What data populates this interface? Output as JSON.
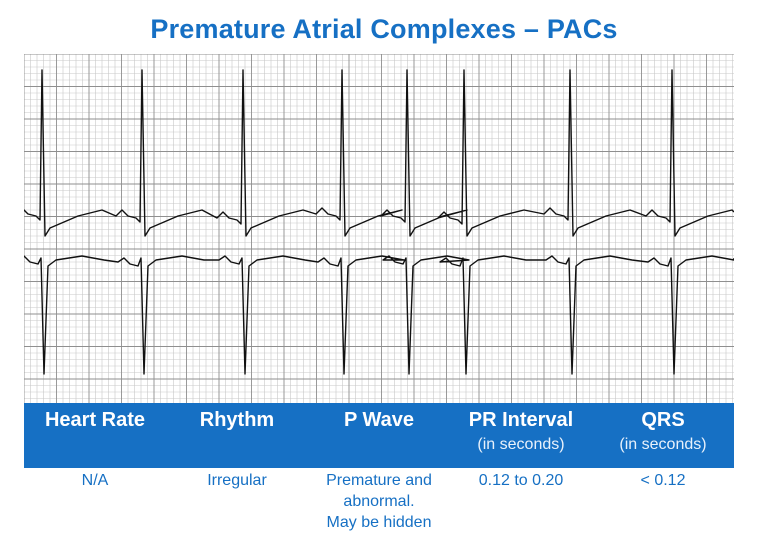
{
  "title": "Premature Atrial Complexes – PACs",
  "table": {
    "columns": [
      {
        "header": "Heart Rate",
        "sub": "",
        "value_lines": [
          "N/A"
        ]
      },
      {
        "header": "Rhythm",
        "sub": "",
        "value_lines": [
          "Irregular"
        ]
      },
      {
        "header": "P Wave",
        "sub": "",
        "value_lines": [
          "Premature and",
          "abnormal.",
          "May be hidden"
        ]
      },
      {
        "header": "PR Interval",
        "sub": "(in seconds)",
        "value_lines": [
          "0.12 to 0.20"
        ]
      },
      {
        "header": "QRS",
        "sub": "(in seconds)",
        "value_lines": [
          "< 0.12"
        ]
      }
    ]
  },
  "colors": {
    "accent": "#1670c4",
    "grid_minor": "#c9c9c9",
    "grid_major": "#8f8f8f",
    "trace": "#111111"
  }
}
